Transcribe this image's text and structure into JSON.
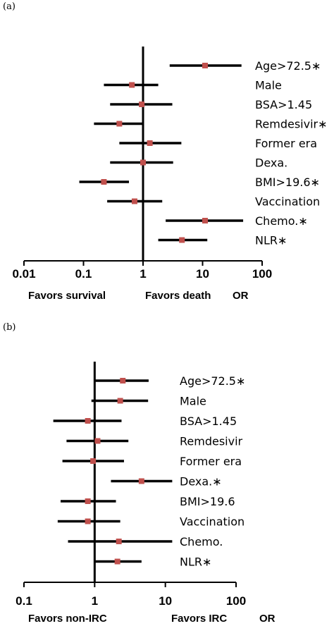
{
  "chart_data": [
    {
      "type": "forest",
      "panel_label": "(a)",
      "scale": "log",
      "xlim": [
        0.01,
        100
      ],
      "ticks": [
        "0.01",
        "0.1",
        "1",
        "10",
        "100"
      ],
      "reference_line": 1,
      "labels": {
        "left": "Favors survival",
        "right": "Favors death",
        "or": "OR"
      },
      "rows": [
        {
          "label": "Age>72.5∗",
          "or": 11,
          "lo": 2.8,
          "hi": 45
        },
        {
          "label": "Male",
          "or": 0.65,
          "lo": 0.22,
          "hi": 1.8
        },
        {
          "label": "BSA>1.45",
          "or": 0.95,
          "lo": 0.28,
          "hi": 3.1
        },
        {
          "label": "Remdesivir∗",
          "or": 0.4,
          "lo": 0.15,
          "hi": 1.0
        },
        {
          "label": "Former era",
          "or": 1.3,
          "lo": 0.4,
          "hi": 4.4
        },
        {
          "label": "Dexa.",
          "or": 1.0,
          "lo": 0.28,
          "hi": 3.2
        },
        {
          "label": "BMI>19.6∗",
          "or": 0.22,
          "lo": 0.085,
          "hi": 0.58
        },
        {
          "label": "Vaccination",
          "or": 0.72,
          "lo": 0.25,
          "hi": 2.1
        },
        {
          "label": "Chemo.∗",
          "or": 11,
          "lo": 2.4,
          "hi": 48
        },
        {
          "label": "NLR∗",
          "or": 4.5,
          "lo": 1.8,
          "hi": 12
        }
      ]
    },
    {
      "type": "forest",
      "panel_label": "(b)",
      "scale": "log",
      "xlim": [
        0.1,
        100
      ],
      "ticks": [
        "0.1",
        "1",
        "10",
        "100"
      ],
      "reference_line": 1,
      "labels": {
        "left": "Favors non-IRC",
        "right": "Favors IRC",
        "or": "OR"
      },
      "rows": [
        {
          "label": "Age>72.5∗",
          "or": 2.5,
          "lo": 1.0,
          "hi": 5.8
        },
        {
          "label": "Male",
          "or": 2.3,
          "lo": 0.9,
          "hi": 5.7
        },
        {
          "label": "BSA>1.45",
          "or": 0.8,
          "lo": 0.26,
          "hi": 2.4
        },
        {
          "label": "Remdesivir",
          "or": 1.1,
          "lo": 0.4,
          "hi": 3.0
        },
        {
          "label": "Former era",
          "or": 0.95,
          "lo": 0.35,
          "hi": 2.6
        },
        {
          "label": "Dexa.∗",
          "or": 4.6,
          "lo": 1.7,
          "hi": 12.5
        },
        {
          "label": "BMI>19.6",
          "or": 0.8,
          "lo": 0.33,
          "hi": 2.0
        },
        {
          "label": "Vaccination",
          "or": 0.8,
          "lo": 0.3,
          "hi": 2.3
        },
        {
          "label": "Chemo.",
          "or": 2.2,
          "lo": 0.42,
          "hi": 12.5
        },
        {
          "label": "NLR∗",
          "or": 2.1,
          "lo": 1.0,
          "hi": 4.6
        }
      ]
    }
  ],
  "colors": {
    "marker": "#c0504d",
    "line": "#000000"
  }
}
